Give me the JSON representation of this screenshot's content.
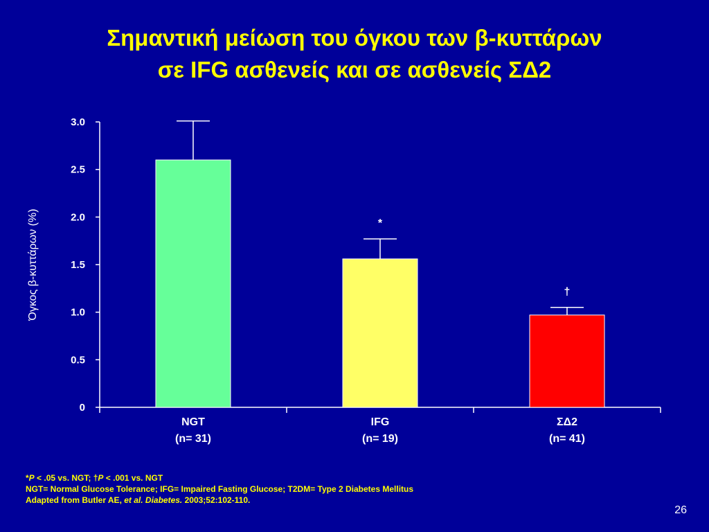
{
  "slide": {
    "title_line1": "Σημαντική μείωση του όγκου των β-κυττάρων",
    "title_line2": "σε IFG ασθενείς και σε ασθενείς ΣΔ2",
    "page_number": "26"
  },
  "footnotes": {
    "sig_star": "*",
    "sig_p1": "P",
    "sig_text1": " < .05 vs. NGT; ",
    "sig_dagger": "†",
    "sig_p2": "P",
    "sig_text2": " < .001 vs. NGT",
    "abbreviations": "NGT= Normal Glucose Tolerance; IFG= Impaired Fasting Glucose; T2DM= Type 2 Diabetes Mellitus",
    "source_prefix": "Adapted from Butler AE, ",
    "source_etal": "et al. Diabetes.",
    "source_suffix": " 2003;52:102-110."
  },
  "chart_data": {
    "type": "bar",
    "title": "",
    "xlabel": "",
    "ylabel": "Όγκος β-κυττάρων (%)",
    "ylim": [
      0,
      3.0
    ],
    "yticks": [
      0,
      0.5,
      1.0,
      1.5,
      2.0,
      2.5,
      3.0
    ],
    "ytick_labels": [
      "0",
      "0.5",
      "1.0",
      "1.5",
      "2.0",
      "2.5",
      "3.0"
    ],
    "grid": false,
    "legend": "none",
    "categories": [
      "NGT",
      "IFG",
      "ΣΔ2"
    ],
    "category_sublabels": [
      "(n= 31)",
      "(n= 19)",
      "(n= 41)"
    ],
    "values": [
      2.6,
      1.56,
      0.97
    ],
    "error_upper": [
      0.41,
      0.21,
      0.08
    ],
    "significance": [
      "",
      "*",
      "†"
    ],
    "colors": [
      "#66ff99",
      "#ffff66",
      "#ff0000"
    ]
  },
  "colors": {
    "background": "#000099",
    "title": "#ffff00",
    "axis": "#ffffff",
    "footnote": "#ffff00"
  }
}
